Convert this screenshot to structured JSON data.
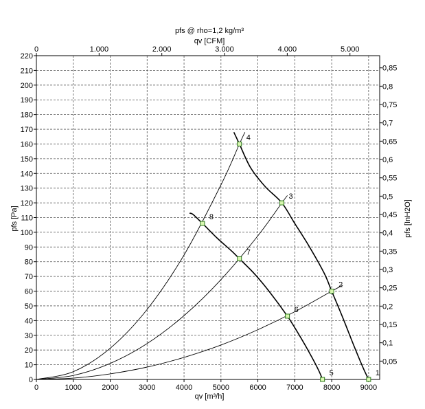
{
  "chart_data": {
    "type": "line",
    "title": "pfs @ rho=1,2 kg/m³",
    "xlabel": "qv [m³/h]",
    "ylabel": "pfs [Pa]",
    "x2label": "qv [CFM]",
    "y2label": "pfs [InH2O]",
    "xlim": [
      0,
      9300
    ],
    "ylim": [
      0,
      220
    ],
    "x_ticks": [
      "0",
      "1000",
      "2000",
      "3000",
      "4000",
      "5000",
      "6000",
      "7000",
      "8000",
      "9000"
    ],
    "y_ticks": [
      "0",
      "10",
      "20",
      "30",
      "40",
      "50",
      "60",
      "70",
      "80",
      "90",
      "100",
      "110",
      "120",
      "130",
      "140",
      "150",
      "160",
      "170",
      "180",
      "190",
      "200",
      "210",
      "220"
    ],
    "x2_ticks": [
      {
        "label": "0",
        "value": 0
      },
      {
        "label": "1.000",
        "value": 1000
      },
      {
        "label": "2.000",
        "value": 2000
      },
      {
        "label": "3.000",
        "value": 3000
      },
      {
        "label": "4.000",
        "value": 4000
      },
      {
        "label": "5.000",
        "value": 5000
      }
    ],
    "y2_ticks": [
      {
        "label": "0,05",
        "value": 0.05
      },
      {
        "label": "0,1",
        "value": 0.1
      },
      {
        "label": "0,15",
        "value": 0.15
      },
      {
        "label": "0,2",
        "value": 0.2
      },
      {
        "label": "0,25",
        "value": 0.25
      },
      {
        "label": "0,3",
        "value": 0.3
      },
      {
        "label": "0,35",
        "value": 0.35
      },
      {
        "label": "0,4",
        "value": 0.4
      },
      {
        "label": "0,45",
        "value": 0.45
      },
      {
        "label": "0,5",
        "value": 0.5
      },
      {
        "label": "0,55",
        "value": 0.55
      },
      {
        "label": "0,6",
        "value": 0.6
      },
      {
        "label": "0,65",
        "value": 0.65
      },
      {
        "label": "0,7",
        "value": 0.7
      },
      {
        "label": "0,75",
        "value": 0.75
      },
      {
        "label": "0,8",
        "value": 0.8
      },
      {
        "label": "0,85",
        "value": 0.85
      }
    ],
    "grid": true,
    "fan_curves": [
      {
        "x": [
          5350,
          5500,
          5800,
          6200,
          6650,
          7000,
          7400,
          7800,
          8000,
          8300,
          8600,
          8850,
          9000
        ],
        "y": [
          168,
          160,
          144,
          131,
          120,
          106,
          90,
          72,
          60,
          42,
          23,
          8,
          0
        ]
      },
      {
        "x": [
          4150,
          4250,
          4500,
          4900,
          5300,
          5500,
          5900,
          6300,
          6800,
          7100,
          7400,
          7650,
          7750
        ],
        "y": [
          113,
          112,
          106,
          96,
          87,
          82,
          72,
          60,
          43,
          31,
          18,
          6,
          0
        ]
      }
    ],
    "system_curves": [
      {
        "x": [
          0,
          1000,
          2000,
          3000,
          4000,
          5000,
          5500,
          5650
        ],
        "y": [
          0,
          5.3,
          21.2,
          47.6,
          84.6,
          132.2,
          160,
          168
        ]
      },
      {
        "x": [
          0,
          1000,
          2000,
          3000,
          4000,
          5000,
          6000,
          6650,
          6800
        ],
        "y": [
          0,
          2.7,
          10.9,
          24.4,
          43.4,
          67.8,
          97.6,
          120,
          125
        ]
      },
      {
        "x": [
          0,
          1000,
          2000,
          3000,
          4000,
          5000,
          6000,
          7000,
          8000,
          8300
        ],
        "y": [
          0,
          0.9,
          3.8,
          8.4,
          15,
          23.4,
          33.8,
          46,
          60,
          64
        ]
      }
    ],
    "points": [
      {
        "label": "1",
        "x": 9000,
        "y": 0
      },
      {
        "label": "2",
        "x": 8000,
        "y": 60
      },
      {
        "label": "3",
        "x": 6650,
        "y": 120
      },
      {
        "label": "4",
        "x": 5500,
        "y": 160
      },
      {
        "label": "5",
        "x": 7750,
        "y": 0
      },
      {
        "label": "6",
        "x": 6800,
        "y": 43
      },
      {
        "label": "7",
        "x": 5500,
        "y": 82
      },
      {
        "label": "8",
        "x": 4500,
        "y": 106
      }
    ]
  }
}
